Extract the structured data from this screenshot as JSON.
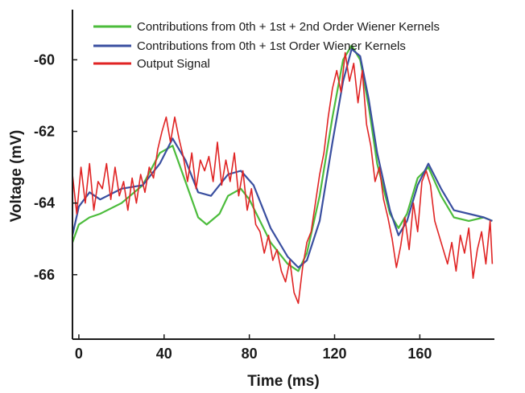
{
  "chart_data": {
    "type": "line",
    "xlabel": "Time (ms)",
    "ylabel": "Voltage (mV)",
    "xlim": [
      -3,
      195
    ],
    "ylim": [
      -67.8,
      -58.6
    ],
    "xticks": [
      0,
      40,
      80,
      120,
      160
    ],
    "xtick_labels": [
      "0",
      "40",
      "80",
      "120",
      "160"
    ],
    "yticks": [
      -60,
      -62,
      -64,
      -66
    ],
    "ytick_labels": [
      "-60",
      "-62",
      "-64",
      "-66"
    ],
    "grid": false,
    "legend_position": "top-right",
    "series": [
      {
        "name": "Contributions from 0th + 1st + 2nd Order Wiener Kernels",
        "color": "#4cbc3c",
        "x": [
          -3,
          0,
          5,
          10,
          20,
          30,
          38,
          44,
          50,
          56,
          60,
          66,
          70,
          76,
          80,
          90,
          98,
          103,
          107,
          113,
          119,
          124,
          128,
          132,
          136,
          140,
          146,
          150,
          154,
          159,
          164,
          170,
          176,
          183,
          190,
          194
        ],
        "y": [
          -65.1,
          -64.6,
          -64.4,
          -64.3,
          -64.0,
          -63.5,
          -62.6,
          -62.4,
          -63.4,
          -64.4,
          -64.6,
          -64.3,
          -63.8,
          -63.6,
          -63.9,
          -65.1,
          -65.7,
          -65.9,
          -65.4,
          -63.8,
          -61.6,
          -60.0,
          -59.6,
          -60.0,
          -61.3,
          -62.9,
          -64.3,
          -64.7,
          -64.3,
          -63.3,
          -63.0,
          -63.8,
          -64.4,
          -64.5,
          -64.4,
          -64.5
        ]
      },
      {
        "name": "Contributions from 0th + 1st Order Wiener Kernels",
        "color": "#3a4fa0",
        "x": [
          -3,
          0,
          5,
          10,
          20,
          30,
          38,
          44,
          50,
          56,
          62,
          70,
          76,
          82,
          90,
          98,
          103,
          107,
          113,
          119,
          124,
          128,
          132,
          136,
          140,
          146,
          150,
          154,
          159,
          164,
          170,
          176,
          183,
          190,
          194
        ],
        "y": [
          -64.9,
          -64.1,
          -63.7,
          -63.9,
          -63.6,
          -63.5,
          -62.9,
          -62.2,
          -62.8,
          -63.7,
          -63.8,
          -63.2,
          -63.1,
          -63.5,
          -64.7,
          -65.5,
          -65.8,
          -65.6,
          -64.5,
          -62.3,
          -60.6,
          -59.7,
          -59.9,
          -61.1,
          -62.6,
          -64.2,
          -64.9,
          -64.5,
          -63.5,
          -62.9,
          -63.6,
          -64.2,
          -64.3,
          -64.4,
          -64.5
        ]
      },
      {
        "name": "Output Signal",
        "color": "#e02424",
        "x": [
          -3,
          -1,
          1,
          3,
          5,
          7,
          9,
          11,
          13,
          15,
          17,
          19,
          21,
          23,
          25,
          27,
          29,
          31,
          33,
          35,
          37,
          39,
          41,
          43,
          45,
          47,
          49,
          51,
          53,
          55,
          57,
          59,
          61,
          63,
          65,
          67,
          69,
          71,
          73,
          75,
          77,
          79,
          81,
          83,
          85,
          87,
          89,
          91,
          93,
          95,
          97,
          99,
          101,
          103,
          105,
          107,
          109,
          111,
          113,
          115,
          117,
          119,
          121,
          123,
          125,
          127,
          129,
          131,
          133,
          135,
          137,
          139,
          141,
          143,
          145,
          147,
          149,
          151,
          153,
          155,
          157,
          159,
          161,
          163,
          165,
          167,
          169,
          171,
          173,
          175,
          177,
          179,
          181,
          183,
          185,
          187,
          189,
          191,
          193,
          194
        ],
        "y": [
          -63.2,
          -64.3,
          -63.0,
          -64.0,
          -62.9,
          -64.2,
          -63.4,
          -63.6,
          -62.9,
          -63.9,
          -63.0,
          -63.8,
          -63.4,
          -64.2,
          -63.3,
          -64.0,
          -63.2,
          -63.7,
          -63.0,
          -63.3,
          -62.5,
          -62.0,
          -61.6,
          -62.3,
          -61.6,
          -62.2,
          -62.7,
          -63.4,
          -62.6,
          -63.6,
          -62.8,
          -63.1,
          -62.7,
          -63.4,
          -62.3,
          -63.5,
          -62.8,
          -63.4,
          -62.6,
          -63.8,
          -63.1,
          -64.2,
          -63.6,
          -64.6,
          -64.8,
          -65.4,
          -64.9,
          -65.6,
          -65.3,
          -65.9,
          -66.2,
          -65.6,
          -66.5,
          -66.8,
          -65.8,
          -65.1,
          -64.8,
          -64.0,
          -63.2,
          -62.6,
          -61.6,
          -60.8,
          -60.3,
          -60.9,
          -59.8,
          -60.6,
          -60.1,
          -61.2,
          -60.3,
          -61.8,
          -62.4,
          -63.4,
          -63.0,
          -63.9,
          -64.4,
          -65.0,
          -65.8,
          -65.2,
          -64.4,
          -65.3,
          -64.0,
          -64.8,
          -63.4,
          -63.1,
          -63.5,
          -64.5,
          -64.9,
          -65.3,
          -65.7,
          -65.1,
          -65.9,
          -64.9,
          -65.4,
          -64.7,
          -66.1,
          -65.3,
          -64.8,
          -65.7,
          -64.5,
          -65.7
        ]
      }
    ]
  }
}
